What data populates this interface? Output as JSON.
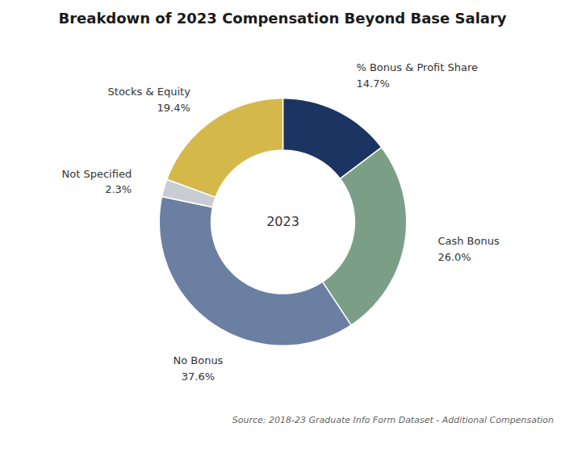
{
  "chart_data": {
    "type": "pie",
    "title": "Breakdown of 2023 Compensation Beyond Base Salary",
    "annotations": [
      "2023"
    ],
    "caption": "Source: 2018-23 Graduate Info Form Dataset - Additional Compensation",
    "categories": [
      "% Bonus & Profit Share",
      "Cash Bonus",
      "No Bonus",
      "Not Specified",
      "Stocks & Equity"
    ],
    "values": [
      14.7,
      26.0,
      37.6,
      2.3,
      19.4
    ],
    "value_labels": [
      "14.7%",
      "26.0%",
      "37.6%",
      "2.3%",
      "19.4%"
    ],
    "colors": [
      "#1c3461",
      "#7b9e87",
      "#6b7fa3",
      "#c8cdd4",
      "#d4b94a"
    ],
    "data_labels": true
  }
}
